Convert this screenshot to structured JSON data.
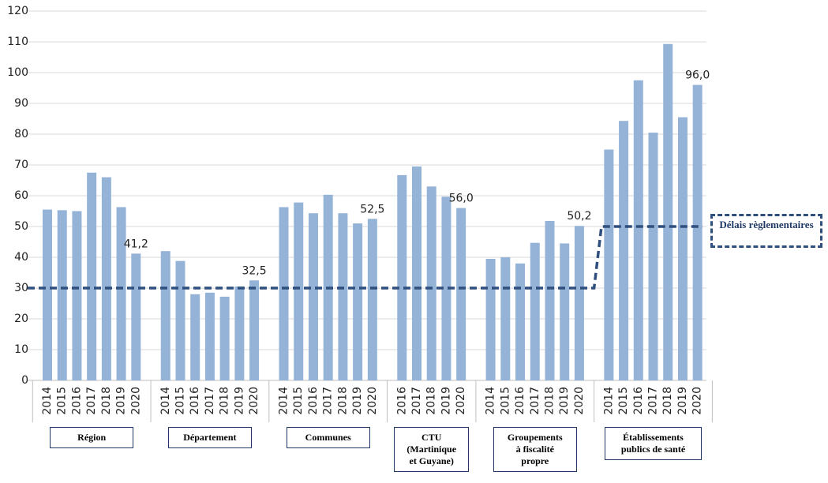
{
  "chart_data": {
    "type": "bar",
    "color": "#95b3d7",
    "ylim": [
      0,
      120
    ],
    "yticks": [
      0,
      10,
      20,
      30,
      40,
      50,
      60,
      70,
      80,
      90,
      100,
      110,
      120
    ],
    "grid": true,
    "groups": [
      {
        "name": "Région",
        "categories": [
          "2014",
          "2015",
          "2016",
          "2017",
          "2018",
          "2019",
          "2020"
        ],
        "values": [
          55.5,
          55.3,
          55.0,
          67.5,
          66.0,
          56.3,
          41.2
        ],
        "value_labels": [
          null,
          null,
          null,
          null,
          null,
          null,
          "41,2"
        ]
      },
      {
        "name": "Département",
        "categories": [
          "2014",
          "2015",
          "2016",
          "2017",
          "2018",
          "2019",
          "2020"
        ],
        "values": [
          42.0,
          38.8,
          28.0,
          28.5,
          27.2,
          30.5,
          32.5
        ],
        "value_labels": [
          null,
          null,
          null,
          null,
          null,
          null,
          "32,5"
        ]
      },
      {
        "name": "Communes",
        "categories": [
          "2014",
          "2015",
          "2016",
          "2017",
          "2018",
          "2019",
          "2020"
        ],
        "values": [
          56.3,
          57.8,
          54.3,
          60.3,
          54.3,
          51.0,
          52.5
        ],
        "value_labels": [
          null,
          null,
          null,
          null,
          null,
          null,
          "52,5"
        ]
      },
      {
        "name": "CTU\n(Martinique\net Guyane)",
        "categories": [
          "2016",
          "2017",
          "2018",
          "2019",
          "2020"
        ],
        "values": [
          66.7,
          69.5,
          63.0,
          59.7,
          56.0
        ],
        "value_labels": [
          null,
          null,
          null,
          null,
          "56,0"
        ]
      },
      {
        "name": "Groupements\nà fiscalité\npropre",
        "categories": [
          "2014",
          "2015",
          "2016",
          "2017",
          "2018",
          "2019",
          "2020"
        ],
        "values": [
          39.5,
          40.0,
          38.0,
          44.7,
          51.8,
          44.5,
          50.2
        ],
        "value_labels": [
          null,
          null,
          null,
          null,
          null,
          null,
          "50,2"
        ]
      },
      {
        "name": "Établissements\npublics de santé",
        "categories": [
          "2014",
          "2015",
          "2016",
          "2017",
          "2018",
          "2019",
          "2020"
        ],
        "values": [
          75.0,
          84.3,
          97.5,
          80.5,
          109.3,
          85.5,
          96.0
        ],
        "value_labels": [
          null,
          null,
          null,
          null,
          null,
          null,
          "96,0"
        ]
      }
    ],
    "reference": {
      "label": "Délais règlementaires",
      "color": "#2f4f7f",
      "values": [
        30,
        30,
        30,
        30,
        30,
        50
      ]
    }
  }
}
